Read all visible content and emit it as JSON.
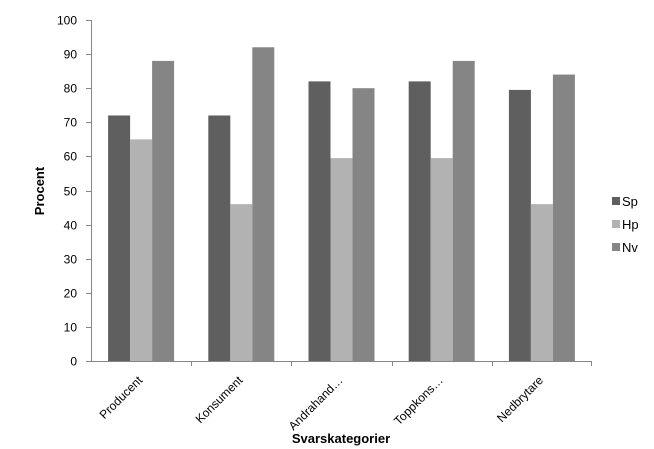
{
  "chart_data": {
    "type": "bar",
    "title": "",
    "xlabel": "Svarskategorier",
    "ylabel": "Procent",
    "ylim": [
      0,
      100
    ],
    "yticks": [
      0,
      10,
      20,
      30,
      40,
      50,
      60,
      70,
      80,
      90,
      100
    ],
    "categories": [
      "Producent",
      "Konsument",
      "Andrahand…",
      "Toppkons…",
      "Nedbrytare"
    ],
    "series": [
      {
        "name": "Sp",
        "color": "#5f5f5f",
        "values": [
          72,
          72,
          82,
          82,
          79.5
        ]
      },
      {
        "name": "Hp",
        "color": "#b2b2b2",
        "values": [
          65,
          46,
          59.5,
          59.5,
          46
        ]
      },
      {
        "name": "Nv",
        "color": "#858585",
        "values": [
          88,
          92,
          80,
          88,
          84
        ]
      }
    ],
    "grid": false,
    "legend": "right"
  }
}
